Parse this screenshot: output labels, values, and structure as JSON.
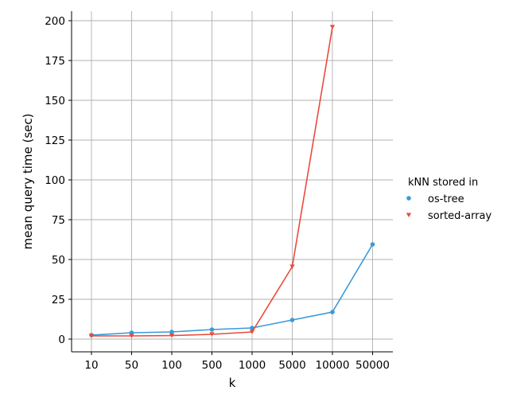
{
  "chart_data": {
    "type": "line",
    "title": "",
    "xlabel": "k",
    "ylabel": "mean query time (sec)",
    "categories": [
      "10",
      "50",
      "100",
      "500",
      "1000",
      "5000",
      "10000",
      "50000"
    ],
    "ylim": [
      -8,
      206
    ],
    "yticks": [
      0,
      25,
      50,
      75,
      100,
      125,
      150,
      175,
      200
    ],
    "grid": true,
    "legend_placement": "right",
    "legend_title": "kNN stored in",
    "series": [
      {
        "name": "os-tree",
        "color": "#3a9ad9",
        "marker": "circle",
        "values": [
          2.5,
          4.0,
          4.5,
          6.0,
          7.0,
          12.0,
          17.0,
          59.5
        ]
      },
      {
        "name": "sorted-array",
        "color": "#e74c3c",
        "marker": "triangle-down",
        "values": [
          2.0,
          2.0,
          2.2,
          3.0,
          4.5,
          45.5,
          196.0,
          null
        ]
      }
    ]
  }
}
